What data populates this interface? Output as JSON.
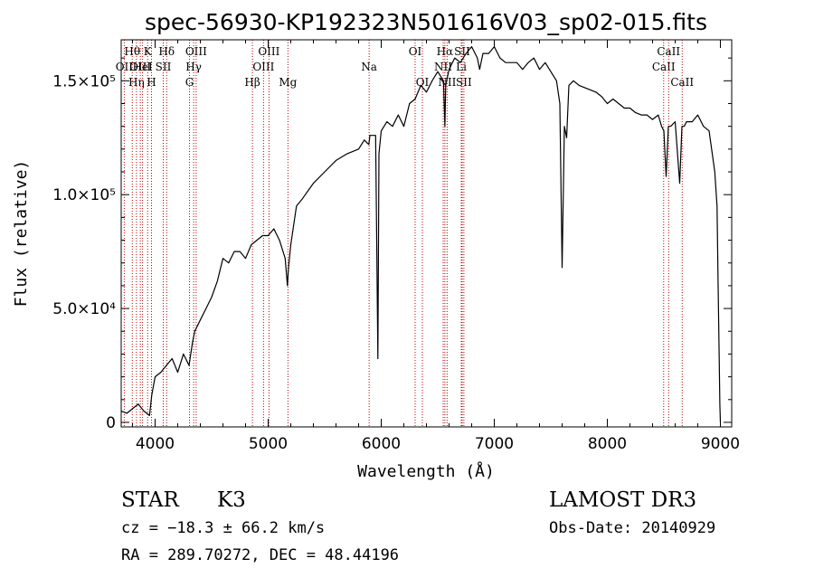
{
  "chart_data": {
    "type": "line",
    "title": "spec-56930-KP192323N501616V03_sp02-015.fits",
    "xlabel": "Wavelength (Å)",
    "ylabel": "Flux (relative)",
    "xlim": [
      3700,
      9100
    ],
    "ylim": [
      -2000,
      168000
    ],
    "x_ticks": [
      4000,
      5000,
      6000,
      7000,
      8000,
      9000
    ],
    "x_tick_labels": [
      "4000",
      "5000",
      "6000",
      "7000",
      "8000",
      "9000"
    ],
    "y_ticks": [
      0,
      50000,
      100000,
      150000
    ],
    "y_tick_labels": [
      "0",
      "5.0×10⁴",
      "1.0×10⁵",
      "1.5×10⁵"
    ],
    "grid": false,
    "series": [
      {
        "color": "#000000",
        "x": [
          3700,
          3750,
          3800,
          3850,
          3900,
          3950,
          3970,
          4000,
          4050,
          4100,
          4150,
          4200,
          4250,
          4300,
          4330,
          4350,
          4400,
          4450,
          4500,
          4550,
          4600,
          4650,
          4700,
          4750,
          4800,
          4850,
          4900,
          4950,
          5000,
          5050,
          5100,
          5150,
          5170,
          5180,
          5200,
          5250,
          5300,
          5400,
          5500,
          5600,
          5700,
          5800,
          5850,
          5890,
          5900,
          5950,
          5960,
          5970,
          5980,
          6000,
          6050,
          6100,
          6150,
          6200,
          6250,
          6300,
          6350,
          6400,
          6450,
          6500,
          6550,
          6563,
          6570,
          6600,
          6650,
          6700,
          6750,
          6800,
          6850,
          6870,
          6900,
          6950,
          7000,
          7050,
          7100,
          7150,
          7200,
          7250,
          7300,
          7350,
          7400,
          7450,
          7500,
          7550,
          7580,
          7600,
          7620,
          7640,
          7660,
          7700,
          7750,
          7800,
          7850,
          7900,
          7950,
          8000,
          8050,
          8100,
          8150,
          8200,
          8250,
          8300,
          8350,
          8400,
          8450,
          8480,
          8500,
          8520,
          8540,
          8560,
          8600,
          8640,
          8660,
          8680,
          8700,
          8750,
          8800,
          8850,
          8900,
          8950,
          8970,
          8980,
          8990,
          8995,
          9000
        ],
        "y": [
          5000,
          4000,
          6000,
          8000,
          5000,
          3000,
          12000,
          20000,
          22000,
          25000,
          28000,
          22000,
          30000,
          25000,
          35000,
          40000,
          45000,
          50000,
          55000,
          62000,
          72000,
          70000,
          75000,
          75000,
          72000,
          78000,
          80000,
          82000,
          82000,
          85000,
          80000,
          72000,
          60000,
          68000,
          78000,
          95000,
          98000,
          105000,
          110000,
          115000,
          118000,
          120000,
          124000,
          122000,
          126000,
          126000,
          80000,
          28000,
          118000,
          128000,
          132000,
          130000,
          135000,
          130000,
          140000,
          142000,
          148000,
          145000,
          150000,
          154000,
          150000,
          130000,
          148000,
          155000,
          160000,
          158000,
          162000,
          165000,
          160000,
          155000,
          162000,
          162000,
          165000,
          160000,
          158000,
          158000,
          158000,
          155000,
          158000,
          160000,
          155000,
          158000,
          154000,
          150000,
          140000,
          68000,
          130000,
          125000,
          148000,
          150000,
          148000,
          147000,
          146000,
          145000,
          143000,
          140000,
          142000,
          140000,
          138000,
          138000,
          136000,
          135000,
          135000,
          133000,
          135000,
          130000,
          128000,
          108000,
          130000,
          130000,
          132000,
          105000,
          130000,
          130000,
          132000,
          132000,
          135000,
          130000,
          128000,
          110000,
          95000,
          60000,
          25000,
          8000,
          0
        ]
      }
    ],
    "spectral_lines": [
      {
        "label": "Hθ",
        "wavelength": 3798,
        "row": 1
      },
      {
        "label": "OII",
        "wavelength": 3727,
        "row": 2
      },
      {
        "label": "Hη",
        "wavelength": 3835,
        "row": 3
      },
      {
        "label": "OIII",
        "wavelength": 3869,
        "row": 2
      },
      {
        "label": "K",
        "wavelength": 3934,
        "row": 1
      },
      {
        "label": "H",
        "wavelength": 3968,
        "row": 3
      },
      {
        "label": "HeI",
        "wavelength": 3889,
        "row": 2
      },
      {
        "label": "SII",
        "wavelength": 4072,
        "row": 2
      },
      {
        "label": "Hδ",
        "wavelength": 4102,
        "row": 1
      },
      {
        "label": "OIII",
        "wavelength": 4363,
        "row": 1
      },
      {
        "label": "Hγ",
        "wavelength": 4341,
        "row": 2
      },
      {
        "label": "G",
        "wavelength": 4304,
        "row": 3
      },
      {
        "label": "Hβ",
        "wavelength": 4861,
        "row": 3
      },
      {
        "label": "OIII",
        "wavelength": 4959,
        "row": 2
      },
      {
        "label": "OIII",
        "wavelength": 5007,
        "row": 1
      },
      {
        "label": "Mg",
        "wavelength": 5175,
        "row": 3
      },
      {
        "label": "Na",
        "wavelength": 5893,
        "row": 2
      },
      {
        "label": "OI",
        "wavelength": 6300,
        "row": 1
      },
      {
        "label": "OI",
        "wavelength": 6364,
        "row": 3
      },
      {
        "label": "Hα",
        "wavelength": 6563,
        "row": 1
      },
      {
        "label": "NII",
        "wavelength": 6548,
        "row": 2
      },
      {
        "label": "NII",
        "wavelength": 6583,
        "row": 3
      },
      {
        "label": "SII",
        "wavelength": 6716,
        "row": 1
      },
      {
        "label": "Li",
        "wavelength": 6708,
        "row": 2
      },
      {
        "label": "SII",
        "wavelength": 6731,
        "row": 3
      },
      {
        "label": "CaII",
        "wavelength": 8498,
        "row": 2
      },
      {
        "label": "CaII",
        "wavelength": 8542,
        "row": 1
      },
      {
        "label": "CaII",
        "wavelength": 8662,
        "row": 3
      }
    ]
  },
  "info": {
    "class_label": "STAR",
    "subclass": "K3",
    "cz": "cz = −18.3 ± 66.2 km/s",
    "radec": "RA = 289.70272, DEC =  48.44196",
    "survey": "LAMOST DR3",
    "obs_date": "Obs-Date: 20140929"
  }
}
